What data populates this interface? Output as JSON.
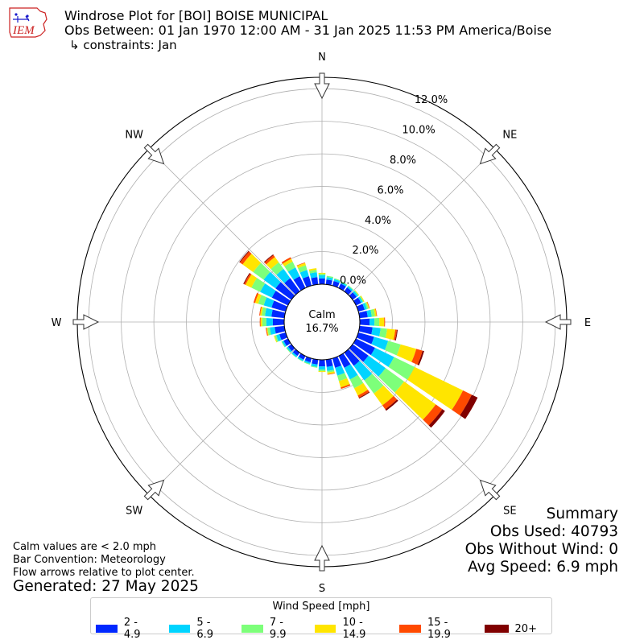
{
  "header": {
    "logo_text": "IEM",
    "title": "Windrose Plot for [BOI] BOISE MUNICIPAL",
    "obs_between": "Obs Between: 01 Jan 1970 12:00 AM - 31 Jan 2025 11:53 PM America/Boise",
    "constraints": "↳ constraints: Jan"
  },
  "summary": {
    "heading": "Summary",
    "obs_used": "Obs Used: 40793",
    "obs_without_wind": "Obs Without Wind: 0",
    "avg_speed": "Avg Speed: 6.9 mph"
  },
  "notes": {
    "calm_note": "Calm values are < 2.0 mph",
    "bar_convention": "Bar Convention: Meteorology",
    "flow_arrows": "Flow arrows relative to plot center.",
    "generated": "Generated: 27 May 2025"
  },
  "chart_data": {
    "type": "windrose",
    "calm_label": "Calm",
    "calm_value": "16.7%",
    "compass": [
      "N",
      "NE",
      "E",
      "SE",
      "S",
      "SW",
      "W",
      "NW"
    ],
    "radial_ticks": [
      "0.0%",
      "2.0%",
      "4.0%",
      "6.0%",
      "8.0%",
      "10.0%",
      "12.0%"
    ],
    "radial_values": [
      0,
      2,
      4,
      6,
      8,
      10,
      12
    ],
    "rmax": 12.7,
    "legend_title": "Wind Speed [mph]",
    "bins": [
      {
        "label": "2 - 4.9",
        "color": "#0028ff"
      },
      {
        "label": "5 - 6.9",
        "color": "#00d4ff"
      },
      {
        "label": "7 - 9.9",
        "color": "#7dff7a"
      },
      {
        "label": "10 - 14.9",
        "color": "#ffe500"
      },
      {
        "label": "15 - 19.9",
        "color": "#ff4a00"
      },
      {
        "label": "20+",
        "color": "#800000"
      }
    ],
    "directions": [
      0,
      10,
      20,
      30,
      40,
      50,
      60,
      70,
      80,
      90,
      100,
      110,
      120,
      130,
      140,
      150,
      160,
      170,
      180,
      190,
      200,
      210,
      220,
      230,
      240,
      250,
      260,
      270,
      280,
      290,
      300,
      310,
      320,
      330,
      340,
      350
    ],
    "values": [
      [
        0.35,
        0.2,
        0.1,
        0.05,
        0.0,
        0.0
      ],
      [
        0.3,
        0.15,
        0.08,
        0.0,
        0.0,
        0.0
      ],
      [
        0.3,
        0.12,
        0.05,
        0.0,
        0.0,
        0.0
      ],
      [
        0.3,
        0.1,
        0.05,
        0.0,
        0.0,
        0.0
      ],
      [
        0.3,
        0.1,
        0.05,
        0.0,
        0.0,
        0.0
      ],
      [
        0.3,
        0.12,
        0.05,
        0.03,
        0.0,
        0.0
      ],
      [
        0.35,
        0.12,
        0.05,
        0.05,
        0.0,
        0.0
      ],
      [
        0.4,
        0.15,
        0.1,
        0.05,
        0.03,
        0.0
      ],
      [
        0.5,
        0.25,
        0.2,
        0.1,
        0.03,
        0.0
      ],
      [
        0.6,
        0.3,
        0.3,
        0.3,
        0.05,
        0.0
      ],
      [
        0.8,
        0.5,
        0.4,
        0.5,
        0.1,
        0.05
      ],
      [
        1.0,
        0.9,
        0.8,
        1.0,
        0.4,
        0.1
      ],
      [
        1.3,
        1.3,
        1.4,
        3.3,
        0.6,
        0.4
      ],
      [
        1.2,
        1.3,
        1.4,
        2.4,
        0.5,
        0.2
      ],
      [
        1.0,
        1.1,
        1.0,
        0.9,
        0.3,
        0.1
      ],
      [
        0.8,
        0.8,
        0.6,
        0.5,
        0.15,
        0.05
      ],
      [
        0.6,
        0.5,
        0.35,
        0.4,
        0.1,
        0.0
      ],
      [
        0.45,
        0.25,
        0.1,
        0.1,
        0.03,
        0.0
      ],
      [
        0.4,
        0.2,
        0.1,
        0.05,
        0.0,
        0.0
      ],
      [
        0.3,
        0.15,
        0.05,
        0.0,
        0.0,
        0.0
      ],
      [
        0.25,
        0.1,
        0.05,
        0.0,
        0.0,
        0.0
      ],
      [
        0.25,
        0.1,
        0.03,
        0.0,
        0.0,
        0.0
      ],
      [
        0.25,
        0.1,
        0.03,
        0.0,
        0.0,
        0.0
      ],
      [
        0.25,
        0.1,
        0.05,
        0.0,
        0.0,
        0.0
      ],
      [
        0.3,
        0.1,
        0.05,
        0.0,
        0.0,
        0.0
      ],
      [
        0.4,
        0.2,
        0.1,
        0.05,
        0.0,
        0.0
      ],
      [
        0.6,
        0.3,
        0.15,
        0.05,
        0.05,
        0.0
      ],
      [
        0.7,
        0.4,
        0.25,
        0.1,
        0.05,
        0.0
      ],
      [
        0.8,
        0.4,
        0.2,
        0.1,
        0.05,
        0.0
      ],
      [
        0.9,
        0.5,
        0.35,
        0.2,
        0.1,
        0.0
      ],
      [
        1.1,
        0.8,
        0.6,
        0.4,
        0.1,
        0.05
      ],
      [
        1.2,
        0.9,
        0.8,
        0.8,
        0.2,
        0.05
      ],
      [
        1.0,
        0.7,
        0.5,
        0.4,
        0.15,
        0.05
      ],
      [
        0.8,
        0.6,
        0.4,
        0.2,
        0.1,
        0.0
      ],
      [
        0.6,
        0.4,
        0.3,
        0.15,
        0.03,
        0.0
      ],
      [
        0.45,
        0.3,
        0.15,
        0.1,
        0.0,
        0.0
      ]
    ]
  }
}
